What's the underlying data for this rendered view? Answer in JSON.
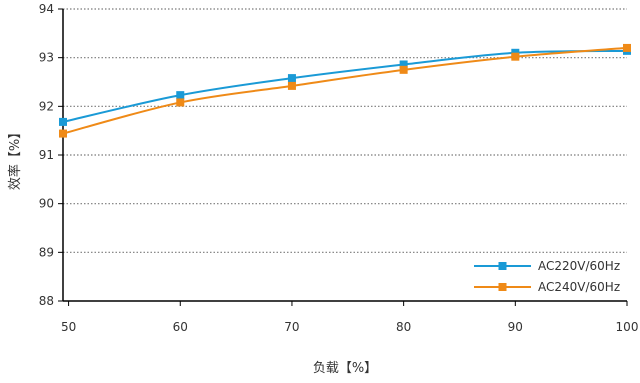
{
  "chart_data": {
    "type": "line",
    "xlabel": "负载【%】",
    "ylabel": "效率【%】",
    "xlim": [
      49.5,
      100
    ],
    "ylim": [
      88,
      94
    ],
    "x_ticks": [
      50,
      60,
      70,
      80,
      90,
      100
    ],
    "y_ticks": [
      88,
      89,
      90,
      91,
      92,
      93,
      94
    ],
    "grid": "horizontal dotted",
    "legend_position": "bottom-right",
    "series": [
      {
        "name": "AC220V/60Hz",
        "color": "#1a9ad6",
        "marker": "square",
        "x": [
          49.5,
          60,
          70,
          80,
          90,
          100
        ],
        "y": [
          91.68,
          92.23,
          92.58,
          92.86,
          93.1,
          93.14
        ]
      },
      {
        "name": "AC240V/60Hz",
        "color": "#ef8a17",
        "marker": "square",
        "x": [
          49.5,
          60,
          70,
          80,
          90,
          100
        ],
        "y": [
          91.44,
          92.08,
          92.42,
          92.75,
          93.02,
          93.2
        ]
      }
    ]
  }
}
